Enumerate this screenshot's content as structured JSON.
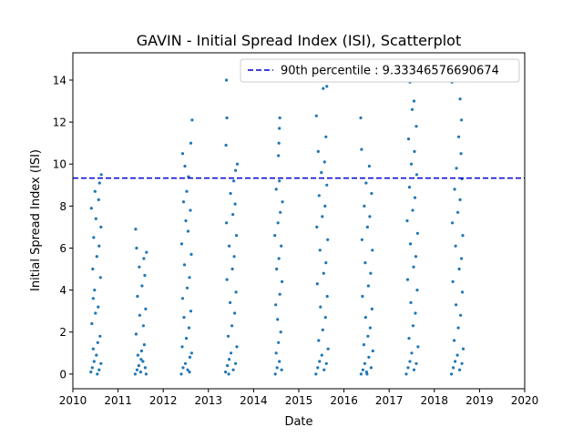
{
  "chart_data": {
    "type": "scatter",
    "title": "GAVIN - Initial Spread Index (ISI), Scatterplot",
    "xlabel": "Date",
    "ylabel": "Initial Spread Index (ISI)",
    "xlim": [
      2010,
      2020
    ],
    "ylim": [
      -0.7,
      15.3
    ],
    "x_ticks": [
      2010,
      2011,
      2012,
      2013,
      2014,
      2015,
      2016,
      2017,
      2018,
      2019,
      2020
    ],
    "x_tick_labels": [
      "2010",
      "2011",
      "2012",
      "2013",
      "2014",
      "2015",
      "2016",
      "2017",
      "2018",
      "2019",
      "2020"
    ],
    "y_ticks": [
      0,
      2,
      4,
      6,
      8,
      10,
      12,
      14
    ],
    "y_tick_labels": [
      "0",
      "2",
      "4",
      "6",
      "8",
      "10",
      "12",
      "14"
    ],
    "grid": false,
    "legend": {
      "placement": "top-right"
    },
    "reference_lines": [
      {
        "name": "90th percentile : 9.33346576690674",
        "y": 9.33346576690674,
        "color": "#0000cc",
        "style": "dashed"
      }
    ],
    "series": [
      {
        "color": "#1f77b4",
        "points": [
          {
            "x": 2010.4,
            "y": 0.1
          },
          {
            "x": 2010.43,
            "y": 0.3
          },
          {
            "x": 2010.47,
            "y": 0.6
          },
          {
            "x": 2010.52,
            "y": 0.9
          },
          {
            "x": 2010.58,
            "y": 0.2
          },
          {
            "x": 2010.62,
            "y": 0.5
          },
          {
            "x": 2010.45,
            "y": 1.2
          },
          {
            "x": 2010.55,
            "y": 1.5
          },
          {
            "x": 2010.6,
            "y": 1.8
          },
          {
            "x": 2010.42,
            "y": 2.4
          },
          {
            "x": 2010.5,
            "y": 2.9
          },
          {
            "x": 2010.56,
            "y": 3.2
          },
          {
            "x": 2010.48,
            "y": 4.0
          },
          {
            "x": 2010.61,
            "y": 4.6
          },
          {
            "x": 2010.44,
            "y": 5.0
          },
          {
            "x": 2010.53,
            "y": 5.6
          },
          {
            "x": 2010.58,
            "y": 6.1
          },
          {
            "x": 2010.46,
            "y": 6.5
          },
          {
            "x": 2010.62,
            "y": 7.0
          },
          {
            "x": 2010.51,
            "y": 7.4
          },
          {
            "x": 2010.41,
            "y": 7.9
          },
          {
            "x": 2010.57,
            "y": 8.3
          },
          {
            "x": 2010.49,
            "y": 8.7
          },
          {
            "x": 2010.59,
            "y": 9.1
          },
          {
            "x": 2010.63,
            "y": 9.5
          },
          {
            "x": 2010.54,
            "y": 0.0
          },
          {
            "x": 2010.45,
            "y": 3.6
          },
          {
            "x": 2011.38,
            "y": 0.0
          },
          {
            "x": 2011.42,
            "y": 0.2
          },
          {
            "x": 2011.46,
            "y": 0.4
          },
          {
            "x": 2011.5,
            "y": 0.1
          },
          {
            "x": 2011.55,
            "y": 0.6
          },
          {
            "x": 2011.6,
            "y": 0.3
          },
          {
            "x": 2011.44,
            "y": 0.9
          },
          {
            "x": 2011.52,
            "y": 1.1
          },
          {
            "x": 2011.58,
            "y": 1.4
          },
          {
            "x": 2011.62,
            "y": 0.0
          },
          {
            "x": 2011.4,
            "y": 1.9
          },
          {
            "x": 2011.56,
            "y": 2.3
          },
          {
            "x": 2011.48,
            "y": 2.8
          },
          {
            "x": 2011.61,
            "y": 3.1
          },
          {
            "x": 2011.43,
            "y": 3.7
          },
          {
            "x": 2011.53,
            "y": 4.2
          },
          {
            "x": 2011.59,
            "y": 4.7
          },
          {
            "x": 2011.47,
            "y": 5.1
          },
          {
            "x": 2011.57,
            "y": 5.5
          },
          {
            "x": 2011.41,
            "y": 6.0
          },
          {
            "x": 2011.63,
            "y": 5.8
          },
          {
            "x": 2011.39,
            "y": 6.9
          },
          {
            "x": 2011.51,
            "y": 0.7
          },
          {
            "x": 2012.4,
            "y": 0.0
          },
          {
            "x": 2012.44,
            "y": 0.3
          },
          {
            "x": 2012.49,
            "y": 0.5
          },
          {
            "x": 2012.54,
            "y": 0.2
          },
          {
            "x": 2012.59,
            "y": 0.8
          },
          {
            "x": 2012.63,
            "y": 1.0
          },
          {
            "x": 2012.42,
            "y": 1.3
          },
          {
            "x": 2012.51,
            "y": 1.7
          },
          {
            "x": 2012.57,
            "y": 2.2
          },
          {
            "x": 2012.46,
            "y": 2.7
          },
          {
            "x": 2012.61,
            "y": 3.0
          },
          {
            "x": 2012.43,
            "y": 3.6
          },
          {
            "x": 2012.53,
            "y": 4.1
          },
          {
            "x": 2012.58,
            "y": 4.6
          },
          {
            "x": 2012.47,
            "y": 5.2
          },
          {
            "x": 2012.62,
            "y": 5.7
          },
          {
            "x": 2012.41,
            "y": 6.2
          },
          {
            "x": 2012.55,
            "y": 6.8
          },
          {
            "x": 2012.5,
            "y": 7.3
          },
          {
            "x": 2012.6,
            "y": 7.8
          },
          {
            "x": 2012.45,
            "y": 8.2
          },
          {
            "x": 2012.52,
            "y": 8.7
          },
          {
            "x": 2012.56,
            "y": 9.4
          },
          {
            "x": 2012.48,
            "y": 9.9
          },
          {
            "x": 2012.43,
            "y": 10.5
          },
          {
            "x": 2012.61,
            "y": 11.0
          },
          {
            "x": 2012.64,
            "y": 12.1
          },
          {
            "x": 2012.58,
            "y": 0.1
          },
          {
            "x": 2013.38,
            "y": 0.1
          },
          {
            "x": 2013.42,
            "y": 0.4
          },
          {
            "x": 2013.46,
            "y": 0.7
          },
          {
            "x": 2013.5,
            "y": 1.0
          },
          {
            "x": 2013.55,
            "y": 0.2
          },
          {
            "x": 2013.6,
            "y": 0.5
          },
          {
            "x": 2013.63,
            "y": 1.3
          },
          {
            "x": 2013.44,
            "y": 1.8
          },
          {
            "x": 2013.52,
            "y": 2.3
          },
          {
            "x": 2013.58,
            "y": 2.9
          },
          {
            "x": 2013.48,
            "y": 3.4
          },
          {
            "x": 2013.61,
            "y": 3.9
          },
          {
            "x": 2013.41,
            "y": 4.5
          },
          {
            "x": 2013.53,
            "y": 5.0
          },
          {
            "x": 2013.57,
            "y": 5.6
          },
          {
            "x": 2013.46,
            "y": 6.1
          },
          {
            "x": 2013.62,
            "y": 6.6
          },
          {
            "x": 2013.4,
            "y": 7.2
          },
          {
            "x": 2013.54,
            "y": 7.6
          },
          {
            "x": 2013.59,
            "y": 8.1
          },
          {
            "x": 2013.49,
            "y": 8.6
          },
          {
            "x": 2013.56,
            "y": 9.2
          },
          {
            "x": 2013.6,
            "y": 9.7
          },
          {
            "x": 2013.64,
            "y": 10.0
          },
          {
            "x": 2013.39,
            "y": 10.9
          },
          {
            "x": 2013.41,
            "y": 12.2
          },
          {
            "x": 2013.4,
            "y": 14.0
          },
          {
            "x": 2013.45,
            "y": 0.0
          },
          {
            "x": 2014.48,
            "y": 0.0
          },
          {
            "x": 2014.52,
            "y": 0.3
          },
          {
            "x": 2014.57,
            "y": 0.6
          },
          {
            "x": 2014.62,
            "y": 0.2
          },
          {
            "x": 2014.5,
            "y": 1.0
          },
          {
            "x": 2014.55,
            "y": 1.5
          },
          {
            "x": 2014.6,
            "y": 2.0
          },
          {
            "x": 2014.53,
            "y": 2.6
          },
          {
            "x": 2014.49,
            "y": 3.3
          },
          {
            "x": 2014.58,
            "y": 3.8
          },
          {
            "x": 2014.63,
            "y": 4.4
          },
          {
            "x": 2014.51,
            "y": 5.0
          },
          {
            "x": 2014.56,
            "y": 5.5
          },
          {
            "x": 2014.61,
            "y": 6.1
          },
          {
            "x": 2014.47,
            "y": 6.6
          },
          {
            "x": 2014.54,
            "y": 7.2
          },
          {
            "x": 2014.59,
            "y": 7.7
          },
          {
            "x": 2014.64,
            "y": 8.2
          },
          {
            "x": 2014.5,
            "y": 8.8
          },
          {
            "x": 2014.57,
            "y": 9.2
          },
          {
            "x": 2014.55,
            "y": 10.4
          },
          {
            "x": 2014.56,
            "y": 11.0
          },
          {
            "x": 2014.57,
            "y": 11.7
          },
          {
            "x": 2014.58,
            "y": 12.2
          },
          {
            "x": 2015.38,
            "y": 0.0
          },
          {
            "x": 2015.42,
            "y": 0.3
          },
          {
            "x": 2015.46,
            "y": 0.6
          },
          {
            "x": 2015.51,
            "y": 0.9
          },
          {
            "x": 2015.56,
            "y": 0.2
          },
          {
            "x": 2015.61,
            "y": 0.5
          },
          {
            "x": 2015.65,
            "y": 1.2
          },
          {
            "x": 2015.44,
            "y": 1.6
          },
          {
            "x": 2015.53,
            "y": 2.1
          },
          {
            "x": 2015.59,
            "y": 2.7
          },
          {
            "x": 2015.48,
            "y": 3.2
          },
          {
            "x": 2015.63,
            "y": 3.7
          },
          {
            "x": 2015.41,
            "y": 4.3
          },
          {
            "x": 2015.55,
            "y": 4.8
          },
          {
            "x": 2015.6,
            "y": 5.3
          },
          {
            "x": 2015.47,
            "y": 5.9
          },
          {
            "x": 2015.64,
            "y": 6.4
          },
          {
            "x": 2015.4,
            "y": 7.0
          },
          {
            "x": 2015.52,
            "y": 7.5
          },
          {
            "x": 2015.58,
            "y": 8.0
          },
          {
            "x": 2015.45,
            "y": 8.5
          },
          {
            "x": 2015.62,
            "y": 9.0
          },
          {
            "x": 2015.5,
            "y": 9.6
          },
          {
            "x": 2015.57,
            "y": 10.1
          },
          {
            "x": 2015.43,
            "y": 10.6
          },
          {
            "x": 2015.6,
            "y": 11.3
          },
          {
            "x": 2015.39,
            "y": 12.3
          },
          {
            "x": 2015.54,
            "y": 13.6
          },
          {
            "x": 2015.62,
            "y": 13.7
          },
          {
            "x": 2016.38,
            "y": 0.0
          },
          {
            "x": 2016.42,
            "y": 0.2
          },
          {
            "x": 2016.46,
            "y": 0.5
          },
          {
            "x": 2016.5,
            "y": 0.1
          },
          {
            "x": 2016.55,
            "y": 0.8
          },
          {
            "x": 2016.6,
            "y": 0.3
          },
          {
            "x": 2016.64,
            "y": 1.1
          },
          {
            "x": 2016.44,
            "y": 1.4
          },
          {
            "x": 2016.53,
            "y": 1.8
          },
          {
            "x": 2016.58,
            "y": 2.2
          },
          {
            "x": 2016.48,
            "y": 2.7
          },
          {
            "x": 2016.62,
            "y": 3.1
          },
          {
            "x": 2016.41,
            "y": 3.7
          },
          {
            "x": 2016.54,
            "y": 4.2
          },
          {
            "x": 2016.59,
            "y": 4.8
          },
          {
            "x": 2016.47,
            "y": 5.3
          },
          {
            "x": 2016.63,
            "y": 5.9
          },
          {
            "x": 2016.4,
            "y": 6.4
          },
          {
            "x": 2016.52,
            "y": 7.0
          },
          {
            "x": 2016.57,
            "y": 7.5
          },
          {
            "x": 2016.45,
            "y": 8.0
          },
          {
            "x": 2016.61,
            "y": 8.6
          },
          {
            "x": 2016.49,
            "y": 9.1
          },
          {
            "x": 2016.56,
            "y": 9.9
          },
          {
            "x": 2016.39,
            "y": 10.7
          },
          {
            "x": 2016.37,
            "y": 12.2
          },
          {
            "x": 2016.51,
            "y": 0.0
          },
          {
            "x": 2017.38,
            "y": 0.0
          },
          {
            "x": 2017.42,
            "y": 0.3
          },
          {
            "x": 2017.46,
            "y": 0.6
          },
          {
            "x": 2017.5,
            "y": 1.0
          },
          {
            "x": 2017.55,
            "y": 0.2
          },
          {
            "x": 2017.6,
            "y": 0.5
          },
          {
            "x": 2017.64,
            "y": 1.3
          },
          {
            "x": 2017.44,
            "y": 1.7
          },
          {
            "x": 2017.53,
            "y": 2.3
          },
          {
            "x": 2017.58,
            "y": 2.9
          },
          {
            "x": 2017.48,
            "y": 3.4
          },
          {
            "x": 2017.62,
            "y": 4.0
          },
          {
            "x": 2017.41,
            "y": 4.5
          },
          {
            "x": 2017.54,
            "y": 5.1
          },
          {
            "x": 2017.59,
            "y": 5.6
          },
          {
            "x": 2017.47,
            "y": 6.2
          },
          {
            "x": 2017.63,
            "y": 6.7
          },
          {
            "x": 2017.4,
            "y": 7.3
          },
          {
            "x": 2017.52,
            "y": 7.8
          },
          {
            "x": 2017.57,
            "y": 8.4
          },
          {
            "x": 2017.45,
            "y": 8.9
          },
          {
            "x": 2017.61,
            "y": 9.5
          },
          {
            "x": 2017.49,
            "y": 10.0
          },
          {
            "x": 2017.56,
            "y": 10.6
          },
          {
            "x": 2017.43,
            "y": 11.2
          },
          {
            "x": 2017.6,
            "y": 11.8
          },
          {
            "x": 2017.51,
            "y": 12.6
          },
          {
            "x": 2017.55,
            "y": 13.0
          },
          {
            "x": 2017.46,
            "y": 13.9
          },
          {
            "x": 2018.38,
            "y": 0.0
          },
          {
            "x": 2018.42,
            "y": 0.3
          },
          {
            "x": 2018.46,
            "y": 0.6
          },
          {
            "x": 2018.51,
            "y": 0.9
          },
          {
            "x": 2018.56,
            "y": 0.2
          },
          {
            "x": 2018.61,
            "y": 0.5
          },
          {
            "x": 2018.64,
            "y": 1.2
          },
          {
            "x": 2018.44,
            "y": 1.6
          },
          {
            "x": 2018.53,
            "y": 2.2
          },
          {
            "x": 2018.58,
            "y": 2.8
          },
          {
            "x": 2018.48,
            "y": 3.3
          },
          {
            "x": 2018.62,
            "y": 3.9
          },
          {
            "x": 2018.41,
            "y": 4.4
          },
          {
            "x": 2018.55,
            "y": 5.0
          },
          {
            "x": 2018.6,
            "y": 5.5
          },
          {
            "x": 2018.47,
            "y": 6.1
          },
          {
            "x": 2018.63,
            "y": 6.6
          },
          {
            "x": 2018.4,
            "y": 7.2
          },
          {
            "x": 2018.52,
            "y": 7.7
          },
          {
            "x": 2018.57,
            "y": 8.3
          },
          {
            "x": 2018.45,
            "y": 8.8
          },
          {
            "x": 2018.61,
            "y": 9.3
          },
          {
            "x": 2018.49,
            "y": 9.8
          },
          {
            "x": 2018.59,
            "y": 10.5
          },
          {
            "x": 2018.54,
            "y": 11.3
          },
          {
            "x": 2018.6,
            "y": 12.1
          },
          {
            "x": 2018.57,
            "y": 13.1
          },
          {
            "x": 2018.39,
            "y": 13.9
          }
        ]
      }
    ]
  }
}
